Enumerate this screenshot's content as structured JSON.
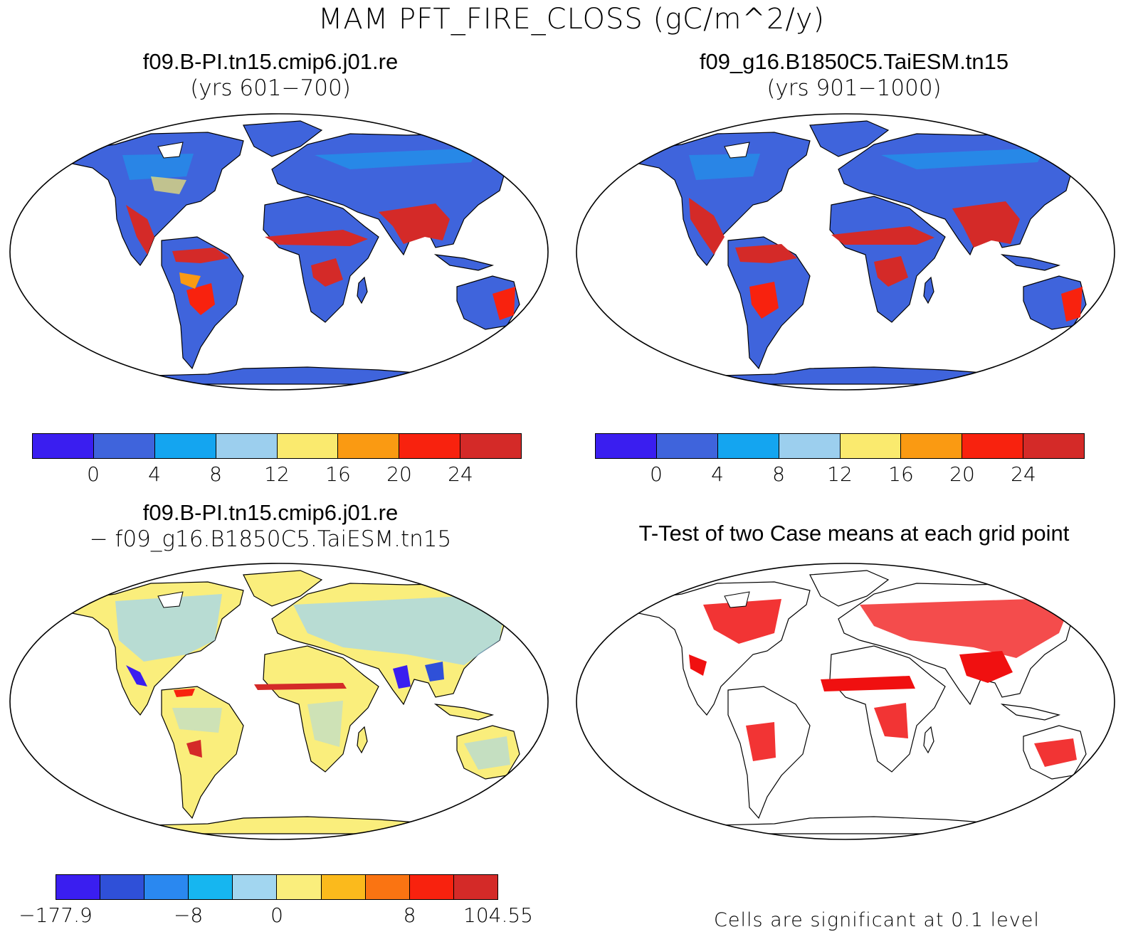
{
  "title": "MAM PFT_FIRE_CLOSS (gC/m^2/y)",
  "panels": {
    "p1": {
      "title": "f09.B-PI.tn15.cmip6.j01.re",
      "subtitle": "(yrs 601−700)"
    },
    "p2": {
      "title": "f09_g16.B1850C5.TaiESM.tn15",
      "subtitle": "(yrs 901−1000)"
    },
    "p3": {
      "title": "f09.B-PI.tn15.cmip6.j01.re",
      "subtitle": "− f09_g16.B1850C5.TaiESM.tn15"
    },
    "p4": {
      "title": "T-Test of two Case means at each grid point",
      "note": "Cells are significant at 0.1 level"
    }
  },
  "colorbars": {
    "cb1": {
      "colors": [
        "#3a1ef0",
        "#3f64dc",
        "#14a5f0",
        "#9ccfee",
        "#faea6e",
        "#fa9a12",
        "#f8220e",
        "#d42a28"
      ],
      "labels": [
        "0",
        "4",
        "8",
        "12",
        "16",
        "20",
        "24"
      ]
    },
    "cb2": {
      "colors": [
        "#3a1ef0",
        "#3f64dc",
        "#14a5f0",
        "#9ccfee",
        "#faea6e",
        "#fa9a12",
        "#f8220e",
        "#d42a28"
      ],
      "labels": [
        "0",
        "4",
        "8",
        "12",
        "16",
        "20",
        "24"
      ]
    },
    "cb3": {
      "colors": [
        "#3a1ef0",
        "#2f50d8",
        "#2a88f0",
        "#16b6f0",
        "#a2d6f0",
        "#faee7c",
        "#fbba1c",
        "#fa7412",
        "#f8220e",
        "#d42a28"
      ],
      "labels": [
        "−177.9",
        "−8",
        "0",
        "8",
        "104.55"
      ]
    }
  },
  "map_colors": {
    "ocean": "#ffffff",
    "land_low": "#3f64dc",
    "fire_high": "#d42a28",
    "diff_neutral": "#faee7c",
    "diff_neg": "#a2d6f0",
    "significant": "#f01010"
  }
}
